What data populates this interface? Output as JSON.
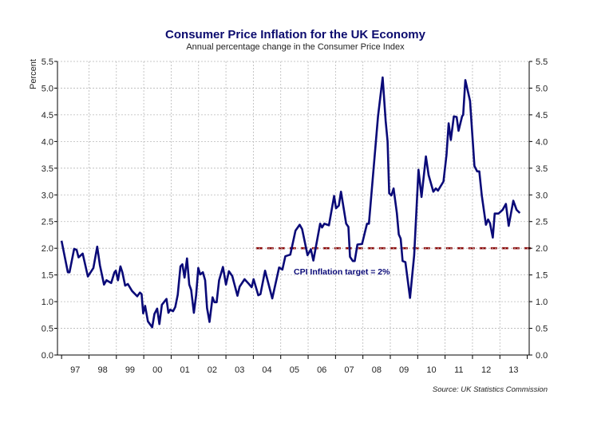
{
  "chart_data": {
    "type": "line",
    "title": "Consumer Price Inflation for the UK Economy",
    "subtitle": "Annual percentage change in the Consumer Price Index",
    "ylabel": "Percent",
    "xlabel": "",
    "source": "Source: UK Statistics Commission",
    "ylim": [
      0,
      5.5
    ],
    "xlim": [
      1996.85,
      2014.07
    ],
    "y_ticks": [
      "0.0",
      "0.5",
      "1.0",
      "1.5",
      "2.0",
      "2.5",
      "3.0",
      "3.5",
      "4.0",
      "4.5",
      "5.0",
      "5.5"
    ],
    "x_tick_labels": [
      "97",
      "98",
      "99",
      "00",
      "01",
      "02",
      "03",
      "04",
      "05",
      "06",
      "07",
      "08",
      "09",
      "10",
      "11",
      "12",
      "13"
    ],
    "grid": true,
    "colors": {
      "series": "#0a0a78",
      "target": "#8b0000",
      "grid": "#b8b8b8"
    },
    "series": [
      {
        "x": [
          1997.0,
          1997.23,
          1997.29,
          1997.46,
          1997.55,
          1997.62,
          1997.77,
          1997.96,
          1998.16,
          1998.3,
          1998.4,
          1998.55,
          1998.64,
          1998.81,
          1998.93,
          1998.98,
          1999.06,
          1999.15,
          1999.22,
          1999.32,
          1999.42,
          1999.57,
          1999.76,
          1999.86,
          1999.92,
          1999.98,
          2000.05,
          2000.15,
          2000.31,
          2000.39,
          2000.49,
          2000.57,
          2000.66,
          2000.83,
          2000.9,
          2000.97,
          2001.07,
          2001.15,
          2001.24,
          2001.34,
          2001.41,
          2001.49,
          2001.58,
          2001.66,
          2001.73,
          2001.83,
          2001.91,
          2001.99,
          2002.06,
          2002.16,
          2002.24,
          2002.31,
          2002.4,
          2002.51,
          2002.58,
          2002.66,
          2002.75,
          2002.89,
          2003.0,
          2003.11,
          2003.23,
          2003.42,
          2003.5,
          2003.68,
          2003.84,
          2003.94,
          2004.01,
          2004.18,
          2004.26,
          2004.43,
          2004.69,
          2004.94,
          2005.06,
          2005.17,
          2005.35,
          2005.54,
          2005.69,
          2005.78,
          2005.98,
          2006.1,
          2006.19,
          2006.44,
          2006.51,
          2006.59,
          2006.76,
          2006.95,
          2007.02,
          2007.12,
          2007.2,
          2007.39,
          2007.47,
          2007.53,
          2007.63,
          2007.7,
          2007.8,
          2007.97,
          2008.15,
          2008.22,
          2008.55,
          2008.72,
          2008.83,
          2008.9,
          2008.96,
          2009.04,
          2009.12,
          2009.24,
          2009.31,
          2009.38,
          2009.45,
          2009.55,
          2009.72,
          2009.87,
          2010.03,
          2010.14,
          2010.3,
          2010.4,
          2010.57,
          2010.66,
          2010.74,
          2010.94,
          2011.05,
          2011.13,
          2011.21,
          2011.32,
          2011.42,
          2011.49,
          2011.62,
          2011.66,
          2011.74,
          2011.91,
          2012.07,
          2012.17,
          2012.25,
          2012.34,
          2012.49,
          2012.57,
          2012.64,
          2012.74,
          2012.81,
          2012.95,
          2013.1,
          2013.22,
          2013.32,
          2013.49,
          2013.61,
          2013.73
        ],
        "y": [
          2.14,
          1.55,
          1.55,
          1.99,
          1.97,
          1.83,
          1.9,
          1.47,
          1.63,
          2.03,
          1.68,
          1.32,
          1.4,
          1.35,
          1.55,
          1.58,
          1.4,
          1.66,
          1.55,
          1.3,
          1.33,
          1.2,
          1.1,
          1.17,
          1.14,
          0.78,
          0.92,
          0.63,
          0.52,
          0.77,
          0.87,
          0.58,
          0.94,
          1.05,
          0.79,
          0.85,
          0.82,
          0.9,
          1.13,
          1.66,
          1.7,
          1.45,
          1.81,
          1.32,
          1.22,
          0.79,
          1.12,
          1.63,
          1.51,
          1.55,
          1.4,
          0.88,
          0.62,
          1.08,
          0.99,
          0.99,
          1.4,
          1.65,
          1.32,
          1.57,
          1.48,
          1.11,
          1.28,
          1.42,
          1.33,
          1.27,
          1.42,
          1.12,
          1.14,
          1.58,
          1.06,
          1.64,
          1.6,
          1.85,
          1.88,
          2.33,
          2.44,
          2.36,
          1.87,
          1.98,
          1.77,
          2.46,
          2.39,
          2.46,
          2.43,
          2.98,
          2.75,
          2.8,
          3.06,
          2.46,
          2.4,
          1.84,
          1.76,
          1.76,
          2.07,
          2.08,
          2.46,
          2.46,
          4.47,
          5.2,
          4.38,
          4.0,
          3.03,
          2.99,
          3.12,
          2.66,
          2.26,
          2.18,
          1.76,
          1.74,
          1.07,
          1.87,
          3.47,
          2.96,
          3.72,
          3.37,
          3.06,
          3.12,
          3.08,
          3.25,
          3.75,
          4.34,
          4.03,
          4.47,
          4.46,
          4.2,
          4.47,
          4.5,
          5.15,
          4.76,
          3.54,
          3.44,
          3.44,
          2.99,
          2.44,
          2.54,
          2.47,
          2.2,
          2.65,
          2.65,
          2.72,
          2.83,
          2.42,
          2.89,
          2.72,
          2.66
        ]
      }
    ],
    "target": {
      "value": 2.0,
      "from": 2004.1,
      "label": "CPI Inflation target = 2%"
    }
  }
}
